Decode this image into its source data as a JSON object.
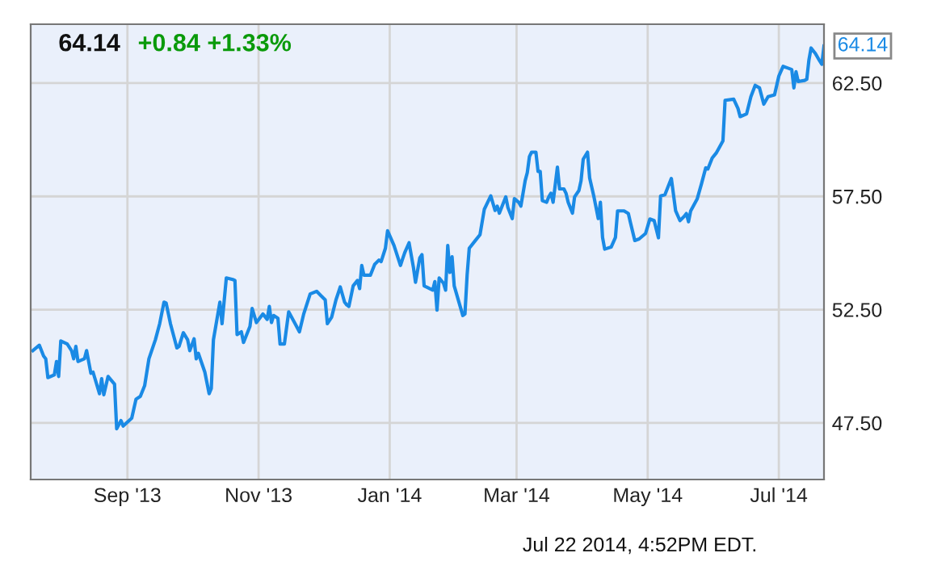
{
  "chart_data": {
    "type": "line",
    "title": "64.14",
    "subtitle": "+0.84 +1.33%",
    "x": [
      "2013-07-19",
      "2013-07-22",
      "2013-07-24",
      "2013-07-25",
      "2013-07-26",
      "2013-07-29",
      "2013-07-30",
      "2013-07-31",
      "2013-08-01",
      "2013-08-04",
      "2013-08-06",
      "2013-08-07",
      "2013-08-08",
      "2013-08-09",
      "2013-08-12",
      "2013-08-13",
      "2013-08-15",
      "2013-08-16",
      "2013-08-19",
      "2013-08-20",
      "2013-08-21",
      "2013-08-23",
      "2013-08-26",
      "2013-08-27",
      "2013-08-29",
      "2013-08-30",
      "2013-09-03",
      "2013-09-05",
      "2013-09-07",
      "2013-09-09",
      "2013-09-11",
      "2013-09-14",
      "2013-09-16",
      "2013-09-18",
      "2013-09-19",
      "2013-09-21",
      "2013-09-24",
      "2013-09-25",
      "2013-09-27",
      "2013-09-29",
      "2013-09-30",
      "2013-10-02",
      "2013-10-03",
      "2013-10-04",
      "2013-10-07",
      "2013-10-09",
      "2013-10-10",
      "2013-10-11",
      "2013-10-14",
      "2013-10-15",
      "2013-10-17",
      "2013-10-20",
      "2013-10-21",
      "2013-10-22",
      "2013-10-24",
      "2013-10-25",
      "2013-10-28",
      "2013-10-29",
      "2013-10-31",
      "2013-11-03",
      "2013-11-05",
      "2013-11-06",
      "2013-11-07",
      "2013-11-08",
      "2013-11-10",
      "2013-11-11",
      "2013-11-13",
      "2013-11-15",
      "2013-11-18",
      "2013-11-20",
      "2013-11-22",
      "2013-11-25",
      "2013-11-28",
      "2013-11-30",
      "2013-12-02",
      "2013-12-03",
      "2013-12-05",
      "2013-12-07",
      "2013-12-09",
      "2013-12-11",
      "2013-12-12",
      "2013-12-13",
      "2013-12-15",
      "2013-12-17",
      "2013-12-18",
      "2013-12-19",
      "2013-12-20",
      "2013-12-23",
      "2013-12-25",
      "2013-12-27",
      "2013-12-28",
      "2013-12-30",
      "2013-12-31",
      "2014-01-03",
      "2014-01-06",
      "2014-01-07",
      "2014-01-08",
      "2014-01-10",
      "2014-01-12",
      "2014-01-13",
      "2014-01-15",
      "2014-01-16",
      "2014-01-17",
      "2014-01-18",
      "2014-01-21",
      "2014-01-22",
      "2014-01-23",
      "2014-01-24",
      "2014-01-26",
      "2014-01-27",
      "2014-01-28",
      "2014-01-29",
      "2014-01-30",
      "2014-01-31",
      "2014-02-04",
      "2014-02-05",
      "2014-02-06",
      "2014-02-07",
      "2014-02-10",
      "2014-02-12",
      "2014-02-14",
      "2014-02-17",
      "2014-02-19",
      "2014-02-20",
      "2014-02-21",
      "2014-02-24",
      "2014-02-25",
      "2014-02-27",
      "2014-02-28",
      "2014-03-02",
      "2014-03-03",
      "2014-03-05",
      "2014-03-06",
      "2014-03-07",
      "2014-03-08",
      "2014-03-10",
      "2014-03-11",
      "2014-03-12",
      "2014-03-13",
      "2014-03-15",
      "2014-03-16",
      "2014-03-17",
      "2014-03-18",
      "2014-03-20",
      "2014-03-21",
      "2014-03-23",
      "2014-03-24",
      "2014-03-25",
      "2014-03-27",
      "2014-03-28",
      "2014-03-30",
      "2014-03-31",
      "2014-04-01",
      "2014-04-03",
      "2014-04-04",
      "2014-04-06",
      "2014-04-08",
      "2014-04-09",
      "2014-04-10",
      "2014-04-11",
      "2014-04-14",
      "2014-04-16",
      "2014-04-17",
      "2014-04-20",
      "2014-04-22",
      "2014-04-23",
      "2014-04-25",
      "2014-04-27",
      "2014-04-30",
      "2014-05-02",
      "2014-05-04",
      "2014-05-06",
      "2014-05-07",
      "2014-05-09",
      "2014-05-12",
      "2014-05-14",
      "2014-05-16",
      "2014-05-18",
      "2014-05-19",
      "2014-05-20",
      "2014-05-21",
      "2014-05-24",
      "2014-05-26",
      "2014-05-28",
      "2014-05-29",
      "2014-05-31",
      "2014-06-02",
      "2014-06-03",
      "2014-06-05",
      "2014-06-06",
      "2014-06-10",
      "2014-06-12",
      "2014-06-13",
      "2014-06-16",
      "2014-06-18",
      "2014-06-20",
      "2014-06-22",
      "2014-06-24",
      "2014-06-26",
      "2014-06-29",
      "2014-07-01",
      "2014-07-03",
      "2014-07-05",
      "2014-07-07",
      "2014-07-08",
      "2014-07-09",
      "2014-07-10",
      "2014-07-13",
      "2014-07-14",
      "2014-07-15",
      "2014-07-16",
      "2014-07-18",
      "2014-07-20",
      "2014-07-21",
      "2014-07-22"
    ],
    "series": [
      {
        "color": "#1a8ae5",
        "values": [
          50.69,
          50.93,
          50.45,
          50.33,
          49.5,
          49.62,
          50.21,
          49.55,
          51.12,
          50.98,
          50.69,
          50.33,
          50.88,
          50.21,
          50.33,
          50.69,
          49.69,
          49.74,
          48.79,
          49.45,
          48.74,
          49.55,
          49.21,
          47.24,
          47.6,
          47.36,
          47.71,
          48.55,
          48.67,
          49.14,
          50.33,
          51.17,
          51.88,
          52.83,
          52.79,
          51.88,
          50.81,
          50.88,
          51.48,
          51.17,
          50.69,
          51.21,
          50.33,
          50.57,
          49.74,
          48.79,
          49.02,
          51.17,
          52.83,
          51.88,
          53.9,
          53.83,
          53.79,
          51.4,
          51.52,
          51.05,
          51.76,
          52.55,
          51.93,
          52.31,
          52.07,
          52.64,
          51.93,
          52.24,
          52.12,
          50.98,
          50.98,
          52.4,
          51.88,
          51.52,
          52.31,
          53.19,
          53.31,
          53.12,
          52.93,
          51.88,
          52.17,
          52.93,
          53.5,
          52.83,
          52.71,
          52.64,
          53.55,
          53.79,
          53.43,
          54.45,
          54.02,
          54.02,
          54.5,
          54.69,
          54.62,
          55.21,
          55.98,
          55.33,
          54.45,
          54.74,
          55.02,
          55.45,
          54.38,
          53.71,
          54.79,
          54.93,
          53.55,
          53.5,
          53.36,
          53.74,
          52.48,
          53.9,
          53.67,
          53.36,
          55.33,
          54.14,
          54.83,
          53.55,
          52.24,
          52.31,
          54.02,
          55.21,
          55.57,
          55.81,
          56.93,
          57.52,
          56.88,
          57.07,
          56.76,
          57.48,
          57.0,
          56.52,
          57.4,
          57.24,
          57.07,
          58.19,
          58.55,
          59.26,
          59.45,
          59.45,
          58.6,
          58.6,
          57.31,
          57.24,
          57.48,
          57.64,
          57.24,
          58.79,
          57.83,
          57.83,
          57.64,
          57.24,
          56.76,
          57.48,
          57.76,
          58.19,
          59.14,
          59.45,
          58.31,
          57.48,
          56.52,
          57.24,
          55.69,
          55.17,
          55.26,
          55.69,
          56.86,
          56.86,
          56.74,
          56.33,
          55.55,
          55.62,
          55.86,
          56.5,
          56.43,
          55.67,
          57.52,
          57.57,
          58.29,
          56.86,
          56.43,
          56.62,
          56.74,
          56.38,
          56.86,
          57.38,
          58.05,
          58.76,
          58.71,
          59.19,
          59.43,
          59.6,
          59.95,
          61.74,
          61.79,
          61.38,
          61.02,
          61.14,
          61.9,
          62.4,
          62.29,
          61.57,
          61.9,
          61.98,
          62.81,
          63.24,
          63.17,
          63.1,
          62.29,
          63.0,
          62.57,
          62.62,
          62.67,
          63.52,
          64.05,
          63.81,
          63.48,
          63.33,
          64.14
        ]
      }
    ],
    "xlim": [
      "2013-07-18",
      "2014-07-22"
    ],
    "xticks": [
      {
        "value": "2013-09-01",
        "label": "Sep '13"
      },
      {
        "value": "2013-11-01",
        "label": "Nov '13"
      },
      {
        "value": "2014-01-01",
        "label": "Jan '14"
      },
      {
        "value": "2014-03-01",
        "label": "Mar '14"
      },
      {
        "value": "2014-05-01",
        "label": "May '14"
      },
      {
        "value": "2014-07-01",
        "label": "Jul '14"
      }
    ],
    "ylim": [
      45.0,
      65.1
    ],
    "yticks": [
      {
        "value": 47.5,
        "label": "47.50"
      },
      {
        "value": 52.5,
        "label": "52.50"
      },
      {
        "value": 57.5,
        "label": "57.50"
      },
      {
        "value": 62.5,
        "label": "62.50"
      }
    ],
    "grid": true,
    "legend": false,
    "marker": "none",
    "line_style": "solid",
    "annotations": [
      {
        "text": "64.14",
        "x": "2014-07-22",
        "y": 64.14
      },
      "Jul 22 2014, 4:52PM EDT."
    ]
  }
}
